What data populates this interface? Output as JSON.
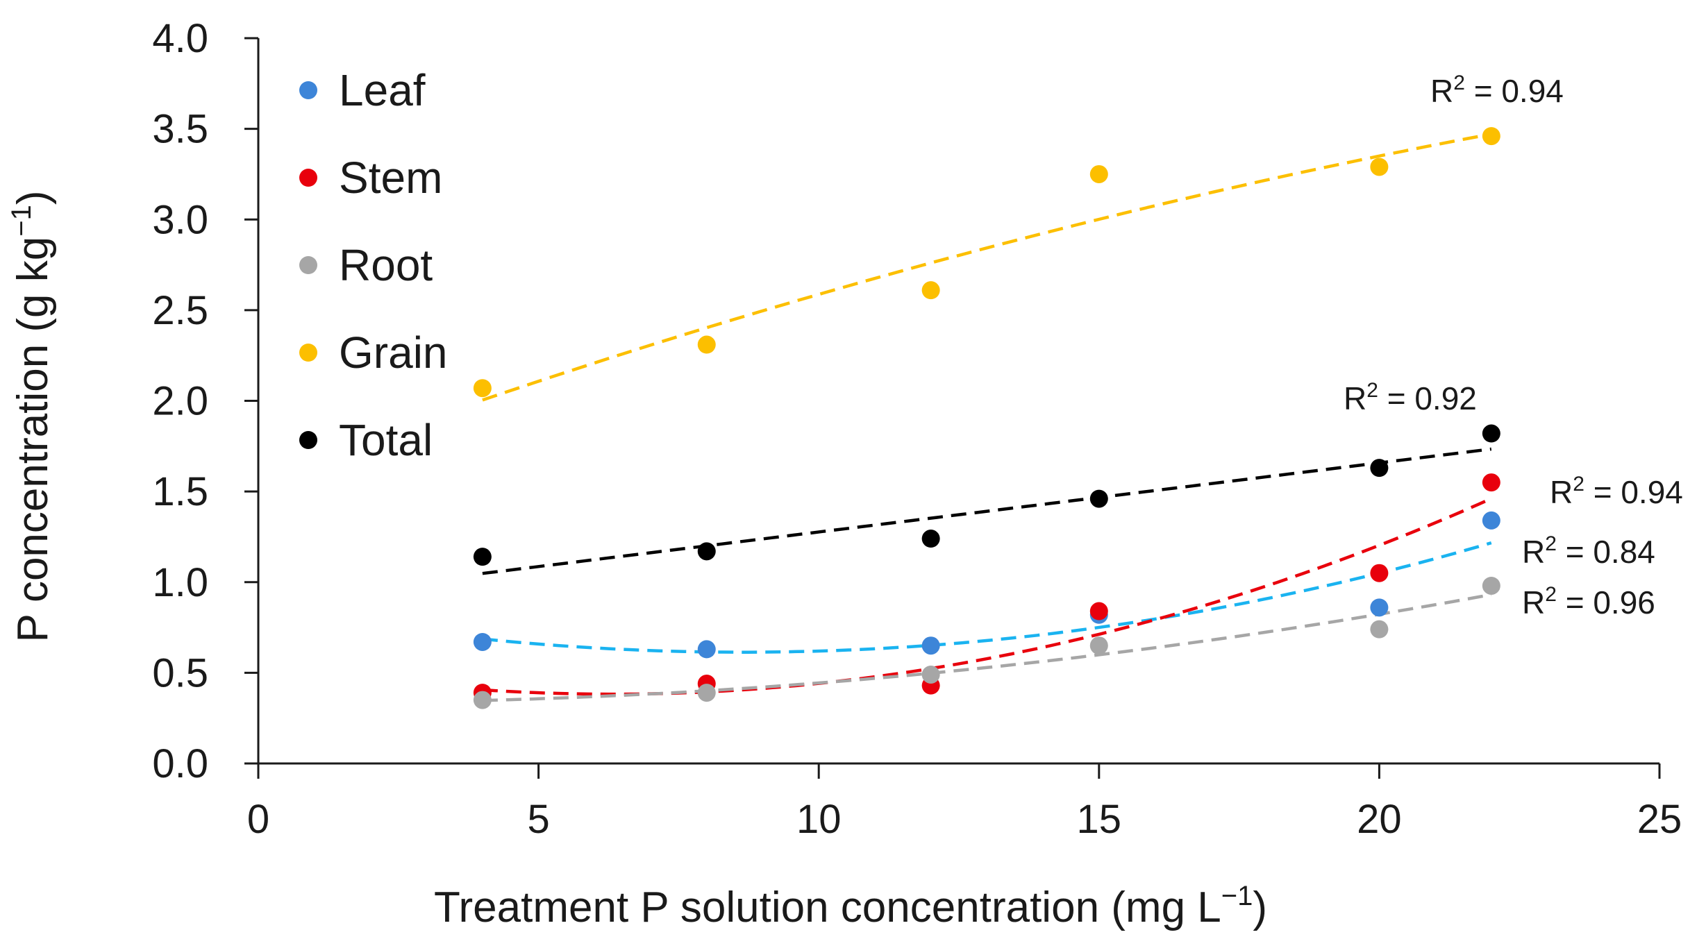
{
  "chart_data": {
    "type": "scatter",
    "title": "",
    "xlabel": "Treatment P solution concentration (mg L",
    "xlabel_sup": "−1",
    "xlabel_end": ")",
    "ylabel": "P concentration (g kg",
    "ylabel_sup": "−1",
    "ylabel_end": ")",
    "xlim": [
      0,
      25
    ],
    "ylim": [
      0,
      4
    ],
    "x_ticks": [
      "0",
      "5",
      "10",
      "15",
      "20",
      "25"
    ],
    "y_ticks": [
      "0.0",
      "0.5",
      "1.0",
      "1.5",
      "2.0",
      "2.5",
      "3.0",
      "3.5",
      "4.0"
    ],
    "grid": false,
    "legend_position": "top-left",
    "x": [
      4,
      8,
      12,
      15,
      20,
      22
    ],
    "series": [
      {
        "name": "Leaf",
        "color": "#3d85d8",
        "trend_color": "#1ab3f0",
        "trend_type": "polynomial",
        "values": [
          0.67,
          0.63,
          0.65,
          0.82,
          0.86,
          1.34
        ],
        "r2_prefix": "R",
        "r2_sup": "2",
        "r2_value": " = 0.84"
      },
      {
        "name": "Stem",
        "color": "#e8000c",
        "trend_color": "#e8000c",
        "trend_type": "polynomial",
        "values": [
          0.39,
          0.44,
          0.43,
          0.84,
          1.05,
          1.55
        ],
        "r2_prefix": "R",
        "r2_sup": "2",
        "r2_value": " = 0.94"
      },
      {
        "name": "Root",
        "color": "#a6a6a6",
        "trend_color": "#a6a6a6",
        "trend_type": "polynomial",
        "values": [
          0.35,
          0.39,
          0.49,
          0.65,
          0.74,
          0.98
        ],
        "r2_prefix": "R",
        "r2_sup": "2",
        "r2_value": " = 0.96"
      },
      {
        "name": "Grain",
        "color": "#fcbf00",
        "trend_color": "#fcbf00",
        "trend_type": "polynomial",
        "values": [
          2.07,
          2.31,
          2.61,
          3.25,
          3.29,
          3.46
        ],
        "r2_prefix": "R",
        "r2_sup": "2",
        "r2_value": " = 0.94"
      },
      {
        "name": "Total",
        "color": "#000000",
        "trend_color": "#000000",
        "trend_type": "linear",
        "values": [
          1.14,
          1.17,
          1.24,
          1.46,
          1.63,
          1.82
        ],
        "r2_prefix": "R",
        "r2_sup": "2",
        "r2_value": " = 0.92"
      }
    ]
  }
}
